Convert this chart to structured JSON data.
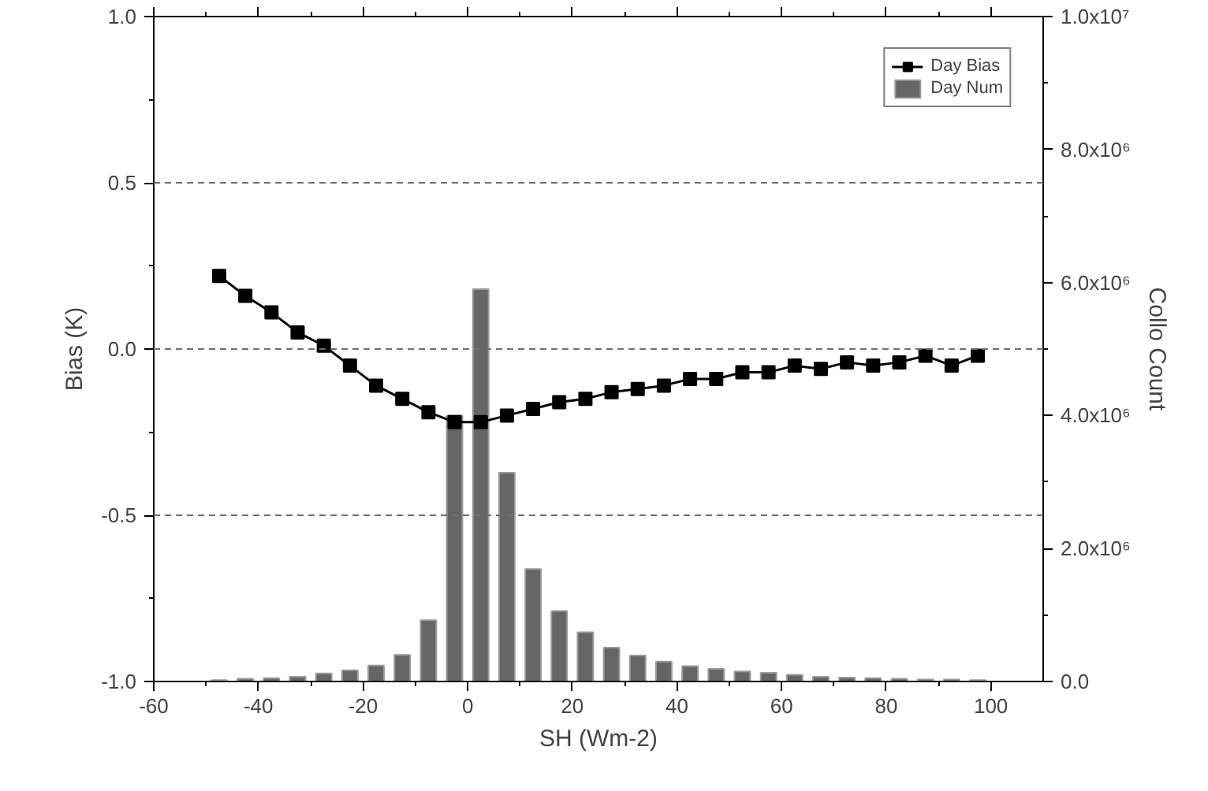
{
  "chart_data": {
    "type": "line",
    "xlabel": "SH (Wm-2)",
    "ylabel": "Bias (K)",
    "y2label": "Collo Count",
    "x": [
      -47.5,
      -42.5,
      -37.5,
      -32.5,
      -27.5,
      -22.5,
      -17.5,
      -12.5,
      -7.5,
      -2.5,
      2.5,
      7.5,
      12.5,
      17.5,
      22.5,
      27.5,
      32.5,
      37.5,
      42.5,
      47.5,
      52.5,
      57.5,
      62.5,
      67.5,
      72.5,
      77.5,
      82.5,
      87.5,
      92.5,
      97.5
    ],
    "xlim": [
      -60,
      110
    ],
    "xticks": [
      -60,
      -40,
      -20,
      0,
      20,
      40,
      60,
      80,
      100
    ],
    "ylim": [
      -1,
      1
    ],
    "yticks": [
      {
        "value": -1,
        "label": "-1.0"
      },
      {
        "value": -0.5,
        "label": "-0.5"
      },
      {
        "value": 0,
        "label": "0.0"
      },
      {
        "value": 0.5,
        "label": "0.5"
      },
      {
        "value": 1,
        "label": "1.0"
      }
    ],
    "y2lim": [
      0,
      10000000
    ],
    "y2ticks": [
      {
        "value": 0,
        "label": "0.0"
      },
      {
        "value": 2000000,
        "label": "2.0x10⁶"
      },
      {
        "value": 4000000,
        "label": "4.0x10⁶"
      },
      {
        "value": 6000000,
        "label": "6.0x10⁶"
      },
      {
        "value": 8000000,
        "label": "8.0x10⁶"
      },
      {
        "value": 10000000,
        "label": "1.0x10⁷"
      }
    ],
    "series": [
      {
        "name": "Day Bias",
        "color": "#000000",
        "values": [
          0.22,
          0.16,
          0.11,
          0.05,
          0.01,
          -0.05,
          -0.11,
          -0.15,
          -0.19,
          -0.22,
          -0.22,
          -0.2,
          -0.18,
          -0.16,
          -0.15,
          -0.13,
          -0.12,
          -0.11,
          -0.09,
          -0.09,
          -0.07,
          -0.07,
          -0.05,
          -0.06,
          -0.04,
          -0.05,
          -0.04,
          -0.02,
          -0.05,
          -0.02
        ]
      },
      {
        "name": "Day Num",
        "type": "bar",
        "axis": "y2",
        "color": "#666666",
        "values": [
          20000,
          40000,
          50000,
          70000,
          120000,
          170000,
          240000,
          400000,
          920000,
          4000000,
          5900000,
          3140000,
          1690000,
          1060000,
          740000,
          510000,
          390000,
          300000,
          230000,
          190000,
          150000,
          130000,
          100000,
          70000,
          60000,
          50000,
          40000,
          30000,
          30000,
          20000
        ]
      }
    ],
    "marker": "square",
    "line_style": "solid",
    "ref_lines": [
      {
        "axis": "y",
        "value": 0.5,
        "color": "#6e6e80",
        "line_style": "dashed"
      },
      {
        "axis": "y",
        "value": 0,
        "color": "#6e6e80",
        "line_style": "dashed"
      },
      {
        "axis": "y",
        "value": -0.5,
        "color": "#6e6e80",
        "line_style": "dashed"
      }
    ],
    "legend": "top right"
  }
}
